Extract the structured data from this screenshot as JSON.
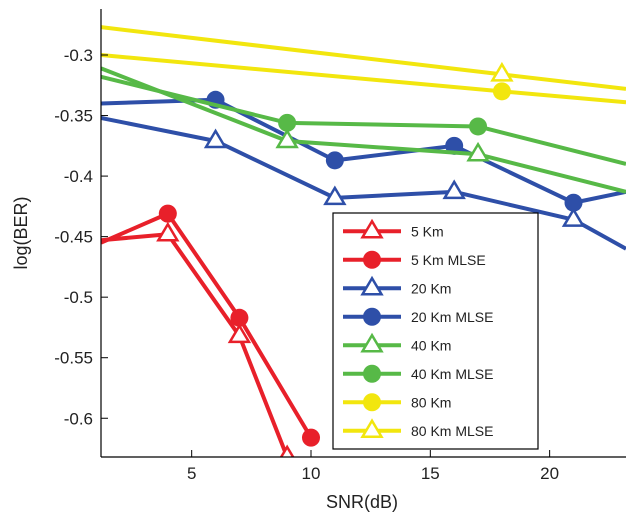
{
  "chart_data": {
    "type": "line",
    "xlabel": "SNR(dB)",
    "ylabel": "log(BER)",
    "xlim": [
      1.2,
      23.2
    ],
    "ylim": [
      -0.632,
      -0.262
    ],
    "xticks": [
      5,
      10,
      15,
      20
    ],
    "yticks": [
      -0.3,
      -0.35,
      -0.4,
      -0.45,
      -0.5,
      -0.55,
      -0.6
    ],
    "xtick_labels": [
      "5",
      "10",
      "15",
      "20"
    ],
    "ytick_labels": [
      "-0.3",
      "-0.35",
      "-0.4",
      "-0.45",
      "-0.5",
      "-0.55",
      "-0.6"
    ],
    "grid": false,
    "legend_position": "lower-right",
    "series": [
      {
        "name": "5 Km",
        "color": "#e8202a",
        "marker": "triangle",
        "x": [
          1.2,
          4,
          7,
          9
        ],
        "y": [
          -0.453,
          -0.448,
          -0.532,
          -0.632
        ]
      },
      {
        "name": "5 Km MLSE",
        "color": "#e8202a",
        "marker": "circle",
        "x": [
          1.2,
          4,
          7,
          10
        ],
        "y": [
          -0.455,
          -0.431,
          -0.517,
          -0.616
        ]
      },
      {
        "name": "20 Km",
        "color": "#2e4fa8",
        "marker": "triangle",
        "x": [
          1.2,
          6,
          11,
          16,
          21,
          23.2
        ],
        "y": [
          -0.352,
          -0.371,
          -0.418,
          -0.413,
          -0.436,
          -0.46
        ]
      },
      {
        "name": "20  Km MLSE",
        "color": "#2e4fa8",
        "marker": "circle",
        "x": [
          1.2,
          6,
          11,
          16,
          21,
          23.2
        ],
        "y": [
          -0.34,
          -0.337,
          -0.387,
          -0.375,
          -0.422,
          -0.413
        ]
      },
      {
        "name": "40 Km",
        "color": "#57b947",
        "marker": "triangle",
        "x": [
          1.2,
          9,
          17,
          23.2
        ],
        "y": [
          -0.311,
          -0.371,
          -0.382,
          -0.413
        ]
      },
      {
        "name": "40 Km MLSE",
        "color": "#57b947",
        "marker": "circle",
        "x": [
          1.2,
          9,
          17,
          23.2
        ],
        "y": [
          -0.318,
          -0.356,
          -0.359,
          -0.39
        ]
      },
      {
        "name": "80 Km",
        "color": "#f2e60e",
        "marker": "circle",
        "x": [
          1.2,
          18,
          23.2
        ],
        "y": [
          -0.3,
          -0.33,
          -0.339
        ]
      },
      {
        "name": "80 Km MLSE",
        "color": "#f2e60e",
        "marker": "triangle",
        "x": [
          1.2,
          18,
          23.2
        ],
        "y": [
          -0.277,
          -0.316,
          -0.328
        ]
      }
    ]
  }
}
